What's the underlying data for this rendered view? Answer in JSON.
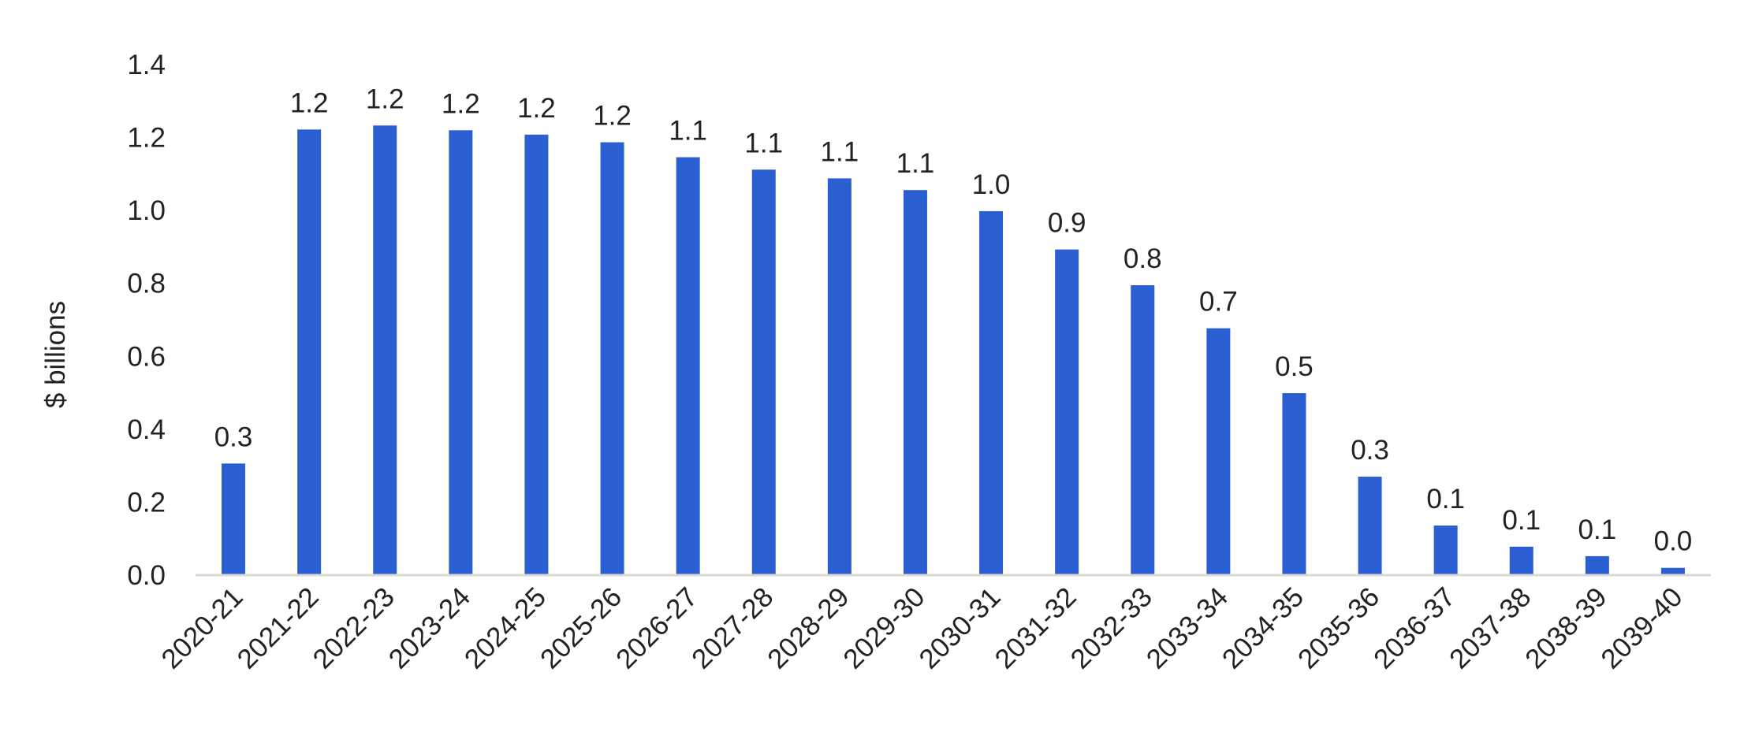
{
  "chart_data": {
    "type": "bar",
    "title": "",
    "xlabel": "",
    "ylabel": "$ billions",
    "ylim": [
      0,
      1.4
    ],
    "yticks": [
      "0.0",
      "0.2",
      "0.4",
      "0.6",
      "0.8",
      "1.0",
      "1.2",
      "1.4"
    ],
    "grid": false,
    "legend": "none",
    "bar_color": "#2b5fd1",
    "baseline_color": "#d9d9d9",
    "categories": [
      "2020-21",
      "2021-22",
      "2022-23",
      "2023-24",
      "2024-25",
      "2025-26",
      "2026-27",
      "2027-28",
      "2028-29",
      "2029-30",
      "2030-31",
      "2031-32",
      "2032-33",
      "2033-34",
      "2034-35",
      "2035-36",
      "2036-37",
      "2037-38",
      "2038-39",
      "2039-40"
    ],
    "values": [
      0.306,
      1.222,
      1.233,
      1.22,
      1.208,
      1.187,
      1.146,
      1.112,
      1.088,
      1.056,
      0.998,
      0.893,
      0.795,
      0.677,
      0.499,
      0.27,
      0.136,
      0.078,
      0.052,
      0.02
    ],
    "data_labels": [
      "0.3",
      "1.2",
      "1.2",
      "1.2",
      "1.2",
      "1.2",
      "1.1",
      "1.1",
      "1.1",
      "1.1",
      "1.0",
      "0.9",
      "0.8",
      "0.7",
      "0.5",
      "0.3",
      "0.1",
      "0.1",
      "0.1",
      "0.0"
    ]
  }
}
